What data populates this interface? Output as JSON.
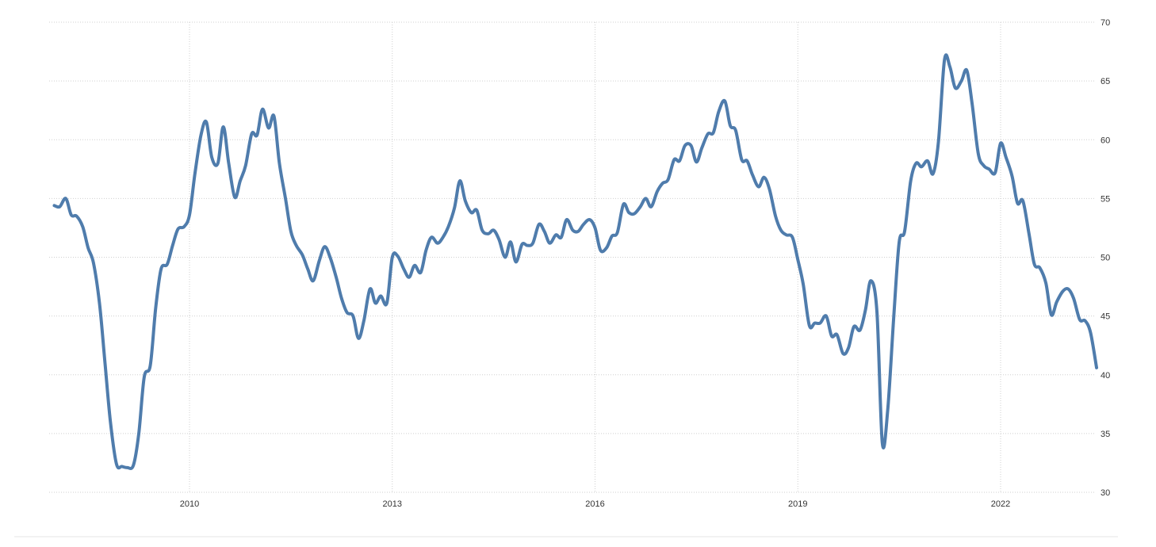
{
  "chart_data": {
    "type": "line",
    "title": "",
    "xlabel": "",
    "ylabel": "",
    "xlim": [
      2008.0,
      2023.75
    ],
    "ylim": [
      30,
      70
    ],
    "yticks": [
      30,
      35,
      40,
      45,
      50,
      55,
      60,
      65,
      70
    ],
    "xticks": [
      {
        "value": 2010,
        "label": "2010"
      },
      {
        "value": 2013,
        "label": "2013"
      },
      {
        "value": 2016,
        "label": "2016"
      },
      {
        "value": 2019,
        "label": "2019"
      },
      {
        "value": 2022,
        "label": "2022"
      }
    ],
    "grid": true,
    "legend": "none",
    "y_axis_position": "right",
    "color": "#4f7cac",
    "series": [
      {
        "points": [
          [
            2008.0,
            54.4
          ],
          [
            2008.08,
            54.3
          ],
          [
            2008.17,
            55.0
          ],
          [
            2008.25,
            53.6
          ],
          [
            2008.33,
            53.5
          ],
          [
            2008.42,
            52.6
          ],
          [
            2008.5,
            50.8
          ],
          [
            2008.58,
            49.5
          ],
          [
            2008.67,
            46.0
          ],
          [
            2008.75,
            41.0
          ],
          [
            2008.83,
            36.0
          ],
          [
            2008.92,
            32.4
          ],
          [
            2009.0,
            32.2
          ],
          [
            2009.08,
            32.1
          ],
          [
            2009.17,
            32.3
          ],
          [
            2009.25,
            35.0
          ],
          [
            2009.33,
            39.8
          ],
          [
            2009.42,
            40.8
          ],
          [
            2009.5,
            45.7
          ],
          [
            2009.58,
            49.0
          ],
          [
            2009.67,
            49.4
          ],
          [
            2009.75,
            51.0
          ],
          [
            2009.83,
            52.4
          ],
          [
            2009.92,
            52.6
          ],
          [
            2010.0,
            53.6
          ],
          [
            2010.08,
            57.1
          ],
          [
            2010.17,
            60.4
          ],
          [
            2010.25,
            61.5
          ],
          [
            2010.33,
            58.5
          ],
          [
            2010.42,
            58.0
          ],
          [
            2010.5,
            61.1
          ],
          [
            2010.58,
            58.0
          ],
          [
            2010.67,
            55.1
          ],
          [
            2010.75,
            56.5
          ],
          [
            2010.83,
            57.8
          ],
          [
            2010.92,
            60.5
          ],
          [
            2011.0,
            60.4
          ],
          [
            2011.08,
            62.6
          ],
          [
            2011.17,
            61.0
          ],
          [
            2011.25,
            62.0
          ],
          [
            2011.33,
            58.0
          ],
          [
            2011.42,
            55.0
          ],
          [
            2011.5,
            52.2
          ],
          [
            2011.58,
            51.0
          ],
          [
            2011.67,
            50.2
          ],
          [
            2011.75,
            49.0
          ],
          [
            2011.83,
            48.0
          ],
          [
            2011.92,
            49.7
          ],
          [
            2012.0,
            50.9
          ],
          [
            2012.08,
            50.0
          ],
          [
            2012.17,
            48.3
          ],
          [
            2012.25,
            46.5
          ],
          [
            2012.33,
            45.3
          ],
          [
            2012.42,
            45.0
          ],
          [
            2012.5,
            43.1
          ],
          [
            2012.58,
            44.6
          ],
          [
            2012.67,
            47.3
          ],
          [
            2012.75,
            46.1
          ],
          [
            2012.83,
            46.7
          ],
          [
            2012.92,
            46.1
          ],
          [
            2013.0,
            50.0
          ],
          [
            2013.08,
            50.1
          ],
          [
            2013.17,
            49.0
          ],
          [
            2013.25,
            48.3
          ],
          [
            2013.33,
            49.3
          ],
          [
            2013.42,
            48.7
          ],
          [
            2013.5,
            50.6
          ],
          [
            2013.58,
            51.7
          ],
          [
            2013.67,
            51.2
          ],
          [
            2013.75,
            51.7
          ],
          [
            2013.83,
            52.6
          ],
          [
            2013.92,
            54.2
          ],
          [
            2014.0,
            56.5
          ],
          [
            2014.08,
            54.8
          ],
          [
            2014.17,
            53.8
          ],
          [
            2014.25,
            54.0
          ],
          [
            2014.33,
            52.3
          ],
          [
            2014.42,
            52.0
          ],
          [
            2014.5,
            52.3
          ],
          [
            2014.58,
            51.5
          ],
          [
            2014.67,
            50.0
          ],
          [
            2014.75,
            51.3
          ],
          [
            2014.83,
            49.6
          ],
          [
            2014.92,
            51.1
          ],
          [
            2015.0,
            51.0
          ],
          [
            2015.08,
            51.2
          ],
          [
            2015.17,
            52.8
          ],
          [
            2015.25,
            52.2
          ],
          [
            2015.33,
            51.2
          ],
          [
            2015.42,
            51.9
          ],
          [
            2015.5,
            51.7
          ],
          [
            2015.58,
            53.2
          ],
          [
            2015.67,
            52.3
          ],
          [
            2015.75,
            52.2
          ],
          [
            2015.83,
            52.8
          ],
          [
            2015.92,
            53.2
          ],
          [
            2016.0,
            52.5
          ],
          [
            2016.08,
            50.6
          ],
          [
            2016.17,
            50.8
          ],
          [
            2016.25,
            51.8
          ],
          [
            2016.33,
            52.1
          ],
          [
            2016.42,
            54.5
          ],
          [
            2016.5,
            53.8
          ],
          [
            2016.58,
            53.7
          ],
          [
            2016.67,
            54.3
          ],
          [
            2016.75,
            55.0
          ],
          [
            2016.83,
            54.3
          ],
          [
            2016.92,
            55.6
          ],
          [
            2017.0,
            56.3
          ],
          [
            2017.08,
            56.6
          ],
          [
            2017.17,
            58.3
          ],
          [
            2017.25,
            58.2
          ],
          [
            2017.33,
            59.5
          ],
          [
            2017.42,
            59.5
          ],
          [
            2017.5,
            58.1
          ],
          [
            2017.58,
            59.3
          ],
          [
            2017.67,
            60.5
          ],
          [
            2017.75,
            60.6
          ],
          [
            2017.83,
            62.4
          ],
          [
            2017.92,
            63.3
          ],
          [
            2018.0,
            61.2
          ],
          [
            2018.08,
            60.8
          ],
          [
            2018.17,
            58.3
          ],
          [
            2018.25,
            58.2
          ],
          [
            2018.33,
            57.0
          ],
          [
            2018.42,
            56.0
          ],
          [
            2018.5,
            56.8
          ],
          [
            2018.58,
            55.8
          ],
          [
            2018.67,
            53.5
          ],
          [
            2018.75,
            52.3
          ],
          [
            2018.83,
            51.9
          ],
          [
            2018.92,
            51.7
          ],
          [
            2019.0,
            49.8
          ],
          [
            2019.08,
            47.7
          ],
          [
            2019.17,
            44.2
          ],
          [
            2019.25,
            44.4
          ],
          [
            2019.33,
            44.4
          ],
          [
            2019.42,
            45.0
          ],
          [
            2019.5,
            43.3
          ],
          [
            2019.58,
            43.4
          ],
          [
            2019.67,
            41.8
          ],
          [
            2019.75,
            42.3
          ],
          [
            2019.83,
            44.1
          ],
          [
            2019.92,
            43.8
          ],
          [
            2020.0,
            45.5
          ],
          [
            2020.08,
            48.0
          ],
          [
            2020.17,
            45.4
          ],
          [
            2020.25,
            34.2
          ],
          [
            2020.33,
            37.0
          ],
          [
            2020.42,
            45.0
          ],
          [
            2020.5,
            51.3
          ],
          [
            2020.58,
            52.2
          ],
          [
            2020.67,
            56.5
          ],
          [
            2020.75,
            58.0
          ],
          [
            2020.83,
            57.7
          ],
          [
            2020.92,
            58.2
          ],
          [
            2021.0,
            57.1
          ],
          [
            2021.08,
            59.8
          ],
          [
            2021.17,
            66.8
          ],
          [
            2021.25,
            66.2
          ],
          [
            2021.33,
            64.4
          ],
          [
            2021.42,
            65.0
          ],
          [
            2021.5,
            65.9
          ],
          [
            2021.58,
            63.0
          ],
          [
            2021.67,
            58.8
          ],
          [
            2021.75,
            57.8
          ],
          [
            2021.83,
            57.5
          ],
          [
            2021.92,
            57.2
          ],
          [
            2022.0,
            59.7
          ],
          [
            2022.08,
            58.5
          ],
          [
            2022.17,
            56.9
          ],
          [
            2022.25,
            54.6
          ],
          [
            2022.33,
            54.8
          ],
          [
            2022.42,
            52.0
          ],
          [
            2022.5,
            49.4
          ],
          [
            2022.58,
            49.1
          ],
          [
            2022.67,
            47.8
          ],
          [
            2022.75,
            45.1
          ],
          [
            2022.83,
            46.2
          ],
          [
            2022.92,
            47.1
          ],
          [
            2023.0,
            47.3
          ],
          [
            2023.08,
            46.5
          ],
          [
            2023.17,
            44.7
          ],
          [
            2023.25,
            44.6
          ],
          [
            2023.33,
            43.6
          ],
          [
            2023.42,
            40.6
          ]
        ]
      }
    ]
  }
}
